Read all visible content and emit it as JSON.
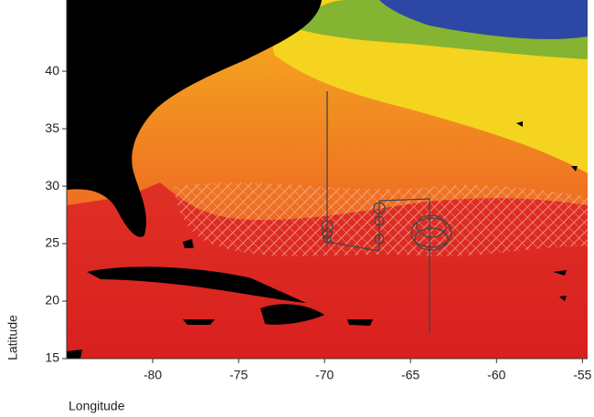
{
  "chart_data": {
    "type": "map",
    "x_label": "Longitude",
    "y_label": "Latitude",
    "xlim": [
      -85,
      -54.7
    ],
    "ylim": [
      15,
      46.2
    ],
    "xticks": [
      -80,
      -75,
      -70,
      -65,
      -60,
      -55
    ],
    "yticks": [
      15,
      20,
      25,
      30,
      35,
      40
    ]
  }
}
